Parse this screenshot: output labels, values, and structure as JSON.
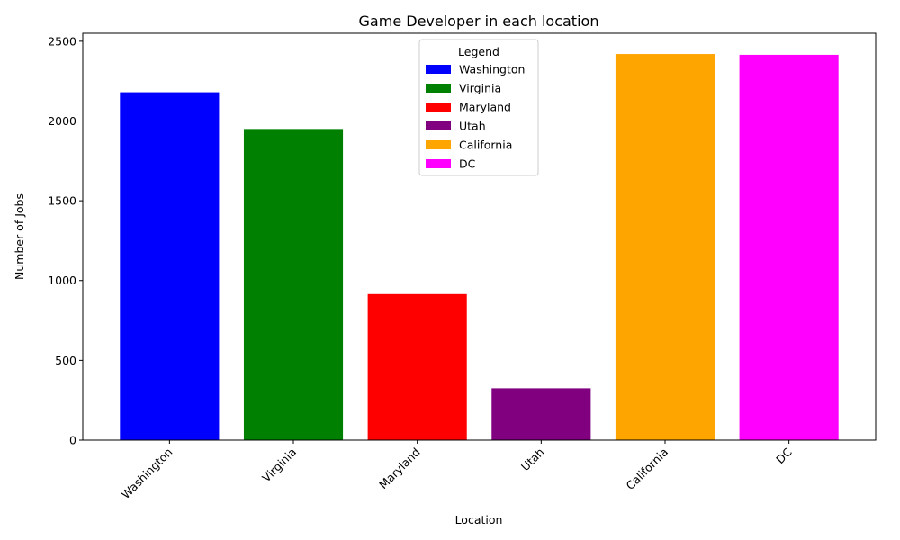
{
  "chart_data": {
    "type": "bar",
    "title": "Game Developer in each location",
    "xlabel": "Location",
    "ylabel": "Number of Jobs",
    "categories": [
      "Washington",
      "Virginia",
      "Maryland",
      "Utah",
      "California",
      "DC"
    ],
    "values": [
      2180,
      1950,
      915,
      325,
      2420,
      2415
    ],
    "colors": [
      "#0000ff",
      "#008000",
      "#ff0000",
      "#800080",
      "#ffa500",
      "#ff00ff"
    ],
    "ylim": [
      0,
      2550
    ],
    "yticks": [
      0,
      500,
      1000,
      1500,
      2000,
      2500
    ],
    "grid": false,
    "x_tick_rotation_deg": 45,
    "legend": {
      "title": "Legend",
      "placement": "upper-center",
      "entries": [
        "Washington",
        "Virginia",
        "Maryland",
        "Utah",
        "California",
        "DC"
      ]
    }
  }
}
